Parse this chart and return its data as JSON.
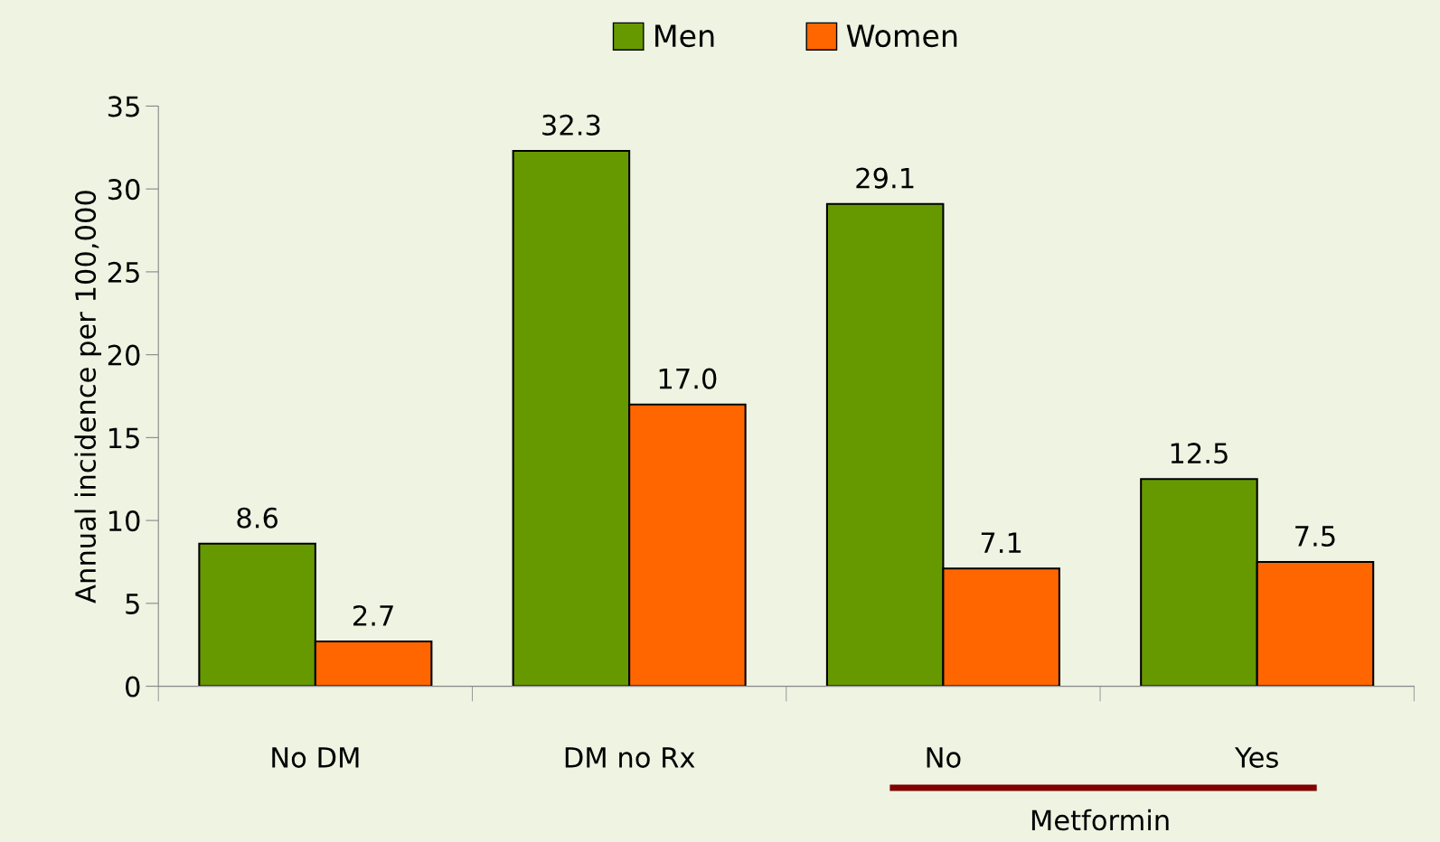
{
  "chart_data": {
    "type": "bar",
    "ylabel": "Annual incidence per 100,000",
    "categories": [
      "No DM",
      "DM no Rx",
      "No",
      "Yes"
    ],
    "series": [
      {
        "name": "Men",
        "color": "#669900",
        "values": [
          8.6,
          32.3,
          29.1,
          12.5
        ],
        "value_labels": [
          "8.6",
          "32.3",
          "29.1",
          "12.5"
        ]
      },
      {
        "name": "Women",
        "color": "#ff6600",
        "values": [
          2.7,
          17.0,
          7.1,
          7.5
        ],
        "value_labels": [
          "2.7",
          "17.0",
          "7.1",
          "7.5"
        ]
      }
    ],
    "ylim": [
      0,
      35
    ],
    "yticks": [
      0,
      5,
      10,
      15,
      20,
      25,
      30,
      35
    ],
    "annotations": [
      "Metformin"
    ],
    "grid": false,
    "legend": "top"
  }
}
